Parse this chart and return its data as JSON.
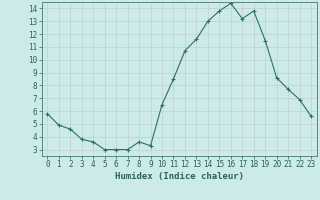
{
  "x": [
    0,
    1,
    2,
    3,
    4,
    5,
    6,
    7,
    8,
    9,
    10,
    11,
    12,
    13,
    14,
    15,
    16,
    17,
    18,
    19,
    20,
    21,
    22,
    23
  ],
  "y": [
    5.8,
    4.9,
    4.6,
    3.8,
    3.6,
    3.0,
    3.0,
    3.0,
    3.6,
    3.3,
    6.5,
    8.5,
    10.7,
    11.6,
    13.0,
    13.8,
    14.4,
    13.2,
    13.8,
    11.5,
    8.6,
    7.7,
    6.9,
    5.6
  ],
  "title": "",
  "xlabel": "Humidex (Indice chaleur)",
  "ylabel": "",
  "line_color": "#2d7060",
  "marker": "+",
  "bg_color": "#cceae8",
  "grid_color": "#c0d0d0",
  "xlim": [
    -0.5,
    23.5
  ],
  "ylim": [
    2.5,
    14.5
  ],
  "yticks": [
    3,
    4,
    5,
    6,
    7,
    8,
    9,
    10,
    11,
    12,
    13,
    14
  ],
  "xticks": [
    0,
    1,
    2,
    3,
    4,
    5,
    6,
    7,
    8,
    9,
    10,
    11,
    12,
    13,
    14,
    15,
    16,
    17,
    18,
    19,
    20,
    21,
    22,
    23
  ],
  "tick_label_fontsize": 5.5,
  "xlabel_fontsize": 6.5,
  "label_color": "#2d6060"
}
